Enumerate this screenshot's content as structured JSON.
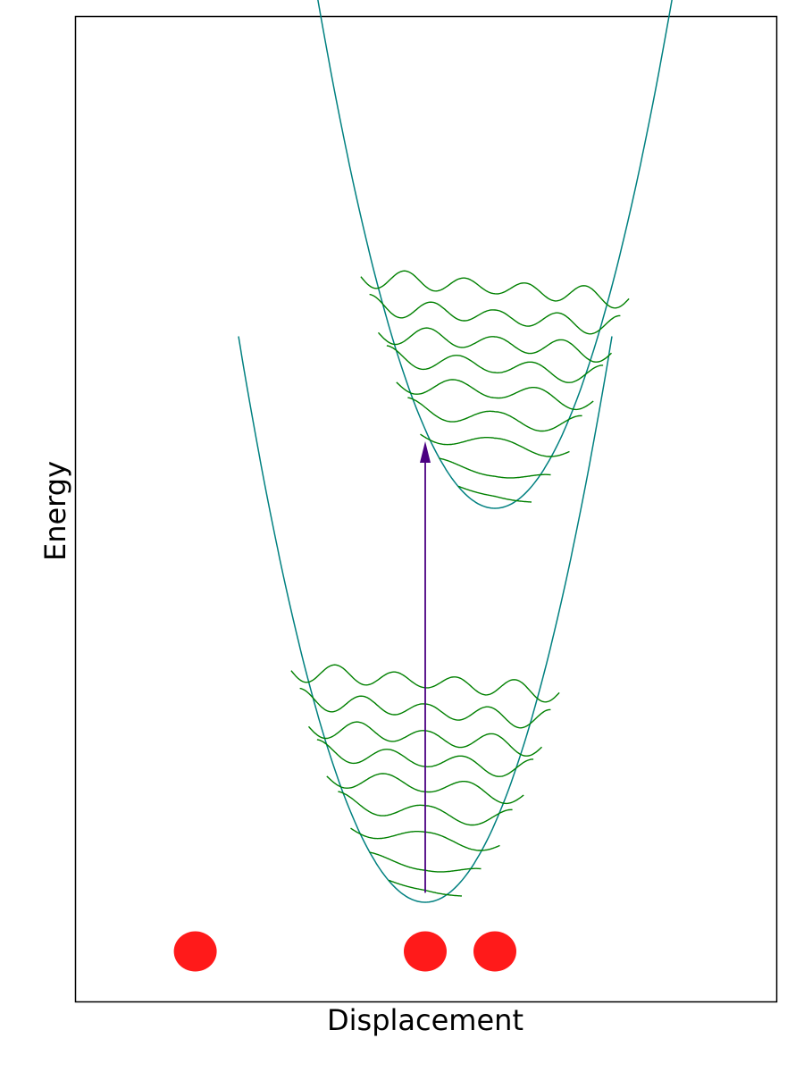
{
  "diagram": {
    "xlabel": "Displacement",
    "ylabel": "Energy",
    "colors": {
      "potential": "#008080",
      "wavefunction": "#008000",
      "arrow": "#4b0082",
      "atom": "#ff1a1a",
      "frame": "#000000"
    },
    "lower_well": {
      "center": 0.0,
      "minimum": 0.0,
      "levels": 9
    },
    "upper_well": {
      "center": 1.0,
      "minimum": 5.0,
      "levels": 9
    },
    "transition": {
      "from": "ground state",
      "to": "excited state"
    },
    "atoms": [
      {
        "position": -3.3
      },
      {
        "position": 0.0
      },
      {
        "position": 1.0
      }
    ]
  }
}
